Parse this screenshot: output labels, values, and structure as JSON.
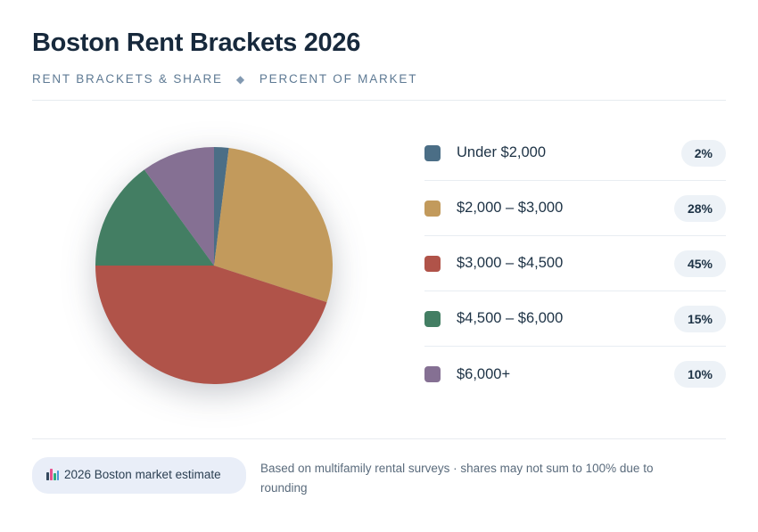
{
  "header": {
    "title": "Boston Rent Brackets 2026",
    "subtitle_left": "RENT BRACKETS & SHARE",
    "subtitle_separator": "◆",
    "subtitle_right": "PERCENT OF MARKET"
  },
  "chart_data": {
    "type": "pie",
    "title": "Boston Rent Brackets 2026",
    "categories": [
      "Under $2,000",
      "$2,000 – $3,000",
      "$3,000 – $4,500",
      "$4,500 – $6,000",
      "$6,000+"
    ],
    "values": [
      2,
      28,
      45,
      15,
      10
    ],
    "unit": "%",
    "colors": [
      "#4b6e86",
      "#c29a5c",
      "#b05349",
      "#437e63",
      "#857093"
    ],
    "start_angle_deg": -90,
    "direction": "clockwise",
    "legend_position": "right",
    "data_labels": false
  },
  "legend": {
    "items": [
      {
        "label": "Under $2,000",
        "value": "2%"
      },
      {
        "label": "$2,000 – $3,000",
        "value": "28%"
      },
      {
        "label": "$3,000 – $4,500",
        "value": "45%"
      },
      {
        "label": "$4,500 – $6,000",
        "value": "15%"
      },
      {
        "label": "$6,000+",
        "value": "10%"
      }
    ]
  },
  "footer": {
    "badge_icon": "bar-chart-icon",
    "badge_text": "2026 Boston market estimate",
    "note": "Based on multifamily rental surveys · shares may not sum to 100% due to rounding"
  },
  "colors": {
    "title_text": "#17293c",
    "subtitle_text": "#5e7a94",
    "pill_background": "#edf2f7",
    "badge_background": "#e9eef8",
    "divider": "#e7ebf0"
  }
}
